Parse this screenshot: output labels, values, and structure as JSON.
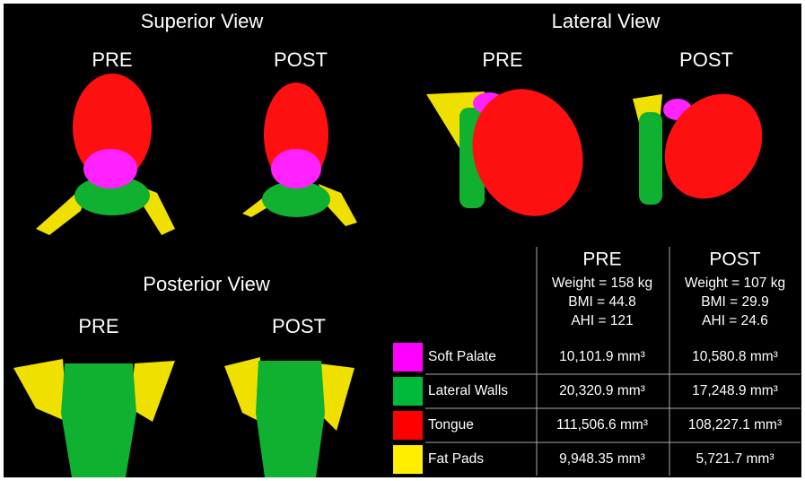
{
  "views": [
    {
      "title": "Superior View",
      "labels": [
        "PRE",
        "POST"
      ]
    },
    {
      "title": "Lateral View",
      "labels": [
        "PRE",
        "POST"
      ]
    },
    {
      "title": "Posterior View",
      "labels": [
        "PRE",
        "POST"
      ]
    }
  ],
  "table": {
    "columns": [
      {
        "label": "PRE",
        "details": [
          "Weight = 158 kg",
          "BMI = 44.8",
          "AHI = 121"
        ]
      },
      {
        "label": "POST",
        "details": [
          "Weight = 107 kg",
          "BMI = 29.9",
          "AHI = 24.6"
        ]
      }
    ],
    "rows": [
      {
        "label": "Soft Palate",
        "color": "#ff00ff",
        "values": [
          "10,101.9 mm³",
          "10,580.8 mm³"
        ]
      },
      {
        "label": "Lateral Walls",
        "color": "#00b83a",
        "values": [
          "20,320.9 mm³",
          "17,248.9 mm³"
        ]
      },
      {
        "label": "Tongue",
        "color": "#ff0000",
        "values": [
          "111,506.6 mm³",
          "108,227.1 mm³"
        ]
      },
      {
        "label": "Fat Pads",
        "color": "#ffee00",
        "values": [
          "9,948.35 mm³",
          "5,721.7 mm³"
        ]
      }
    ]
  }
}
